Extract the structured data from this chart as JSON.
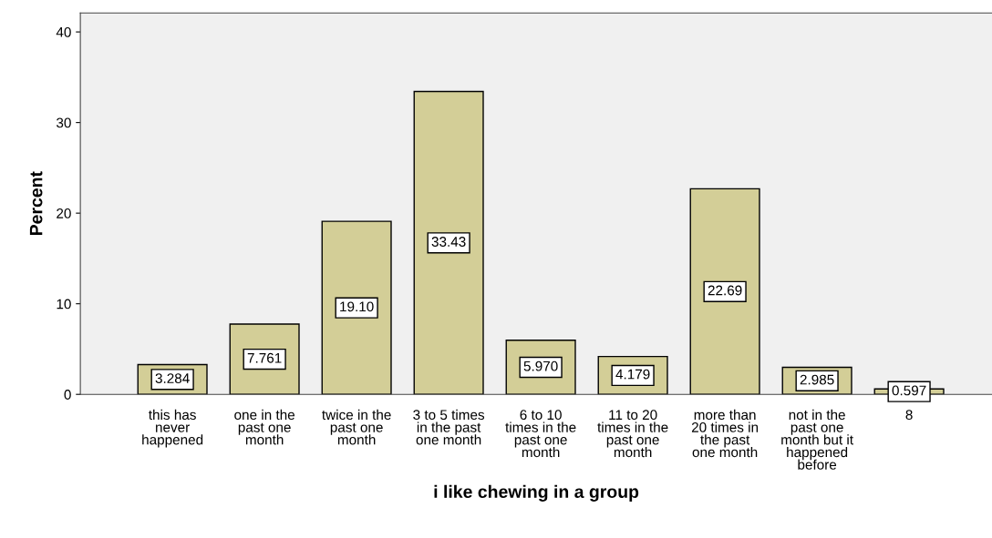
{
  "chart_data": {
    "type": "bar",
    "xlabel": "i like chewing in a group",
    "ylabel": "Percent",
    "categories": [
      "this has\nnever\nhappened",
      "one in the\npast one\nmonth",
      "twice in the\npast one\nmonth",
      "3 to 5 times\nin the past\none month",
      "6 to 10\ntimes in the\npast one\nmonth",
      "11 to 20\ntimes in the\npast one\nmonth",
      "more than\n20 times in\nthe past\none month",
      "not in the\npast one\nmonth but it\nhappened\nbefore",
      "8"
    ],
    "values": [
      3.284,
      7.761,
      19.1,
      33.43,
      5.97,
      4.179,
      22.69,
      2.985,
      0.597
    ],
    "value_labels": [
      "3.284",
      "7.761",
      "19.10",
      "33.43",
      "5.970",
      "4.179",
      "22.69",
      "2.985",
      "0.597"
    ],
    "color": "#d3ce97",
    "ylim": [
      0,
      42.1
    ],
    "yticks": [
      0,
      10,
      20,
      30,
      40
    ],
    "grid": false,
    "legend": false
  }
}
